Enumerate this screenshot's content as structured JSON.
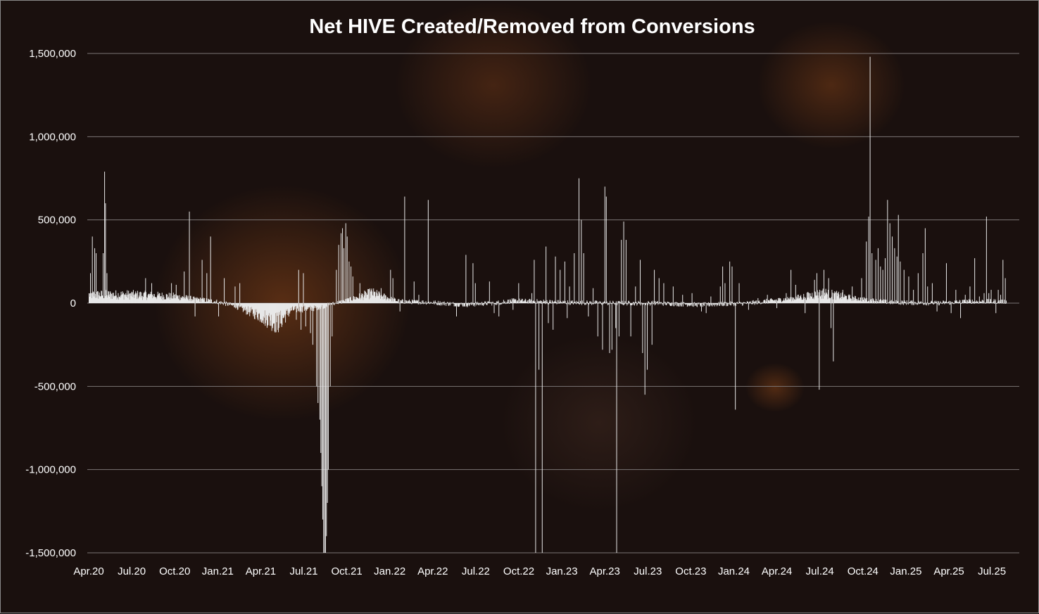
{
  "chart_data": {
    "type": "bar",
    "title": "Net HIVE Created/Removed from Conversions",
    "xlabel": "",
    "ylabel": "",
    "ylim": [
      -1500000,
      1500000
    ],
    "yticks": [
      {
        "value": 1500000,
        "label": "1,500,000"
      },
      {
        "value": 1000000,
        "label": "1,000,000"
      },
      {
        "value": 500000,
        "label": "500,000"
      },
      {
        "value": 0,
        "label": "0"
      },
      {
        "value": -500000,
        "label": "-500,000"
      },
      {
        "value": -1000000,
        "label": "-1,000,000"
      },
      {
        "value": -1500000,
        "label": "-1,500,000"
      }
    ],
    "xticks": [
      "Apr.20",
      "Jul.20",
      "Oct.20",
      "Jan.21",
      "Apr.21",
      "Jul.21",
      "Oct.21",
      "Jan.22",
      "Apr.22",
      "Jul.22",
      "Oct.22",
      "Jan.23",
      "Apr.23",
      "Jul.23",
      "Oct.23",
      "Jan.24",
      "Apr.24",
      "Jul.24",
      "Oct.24",
      "Jan.25",
      "Apr.25",
      "Jul.25"
    ],
    "granularity": "daily",
    "start_date": "2020-04-01",
    "grid": true,
    "legend": "none",
    "bar_color": "#e8e8e8",
    "baseline": [
      [
        0,
        50000
      ],
      [
        90,
        50000
      ],
      [
        180,
        40000
      ],
      [
        270,
        10000
      ],
      [
        300,
        -10000
      ],
      [
        330,
        -40000
      ],
      [
        360,
        -70000
      ],
      [
        375,
        -90000
      ],
      [
        400,
        -120000
      ],
      [
        430,
        -40000
      ],
      [
        480,
        -30000
      ],
      [
        540,
        10000
      ],
      [
        600,
        60000
      ],
      [
        660,
        10000
      ],
      [
        720,
        5000
      ],
      [
        800,
        -10000
      ],
      [
        880,
        5000
      ],
      [
        900,
        15000
      ],
      [
        1000,
        5000
      ],
      [
        1100,
        0
      ],
      [
        1200,
        0
      ],
      [
        1300,
        -10000
      ],
      [
        1400,
        0
      ],
      [
        1500,
        30000
      ],
      [
        1560,
        60000
      ],
      [
        1620,
        30000
      ],
      [
        1700,
        5000
      ],
      [
        1800,
        0
      ],
      [
        1870,
        10000
      ],
      [
        1947,
        10000
      ]
    ],
    "spikes": [
      [
        3,
        180000
      ],
      [
        7,
        400000
      ],
      [
        12,
        330000
      ],
      [
        15,
        300000
      ],
      [
        30,
        300000
      ],
      [
        33,
        790000
      ],
      [
        35,
        600000
      ],
      [
        38,
        180000
      ],
      [
        120,
        150000
      ],
      [
        133,
        120000
      ],
      [
        175,
        120000
      ],
      [
        185,
        110000
      ],
      [
        202,
        190000
      ],
      [
        213,
        550000
      ],
      [
        225,
        -80000
      ],
      [
        240,
        260000
      ],
      [
        250,
        180000
      ],
      [
        258,
        400000
      ],
      [
        275,
        -80000
      ],
      [
        287,
        150000
      ],
      [
        310,
        100000
      ],
      [
        320,
        120000
      ],
      [
        350,
        -60000
      ],
      [
        370,
        -80000
      ],
      [
        375,
        -120000
      ],
      [
        390,
        -150000
      ],
      [
        410,
        -130000
      ],
      [
        440,
        -100000
      ],
      [
        445,
        200000
      ],
      [
        450,
        -160000
      ],
      [
        455,
        180000
      ],
      [
        460,
        -140000
      ],
      [
        470,
        -180000
      ],
      [
        475,
        -250000
      ],
      [
        483,
        -500000
      ],
      [
        486,
        -600000
      ],
      [
        490,
        -700000
      ],
      [
        492,
        -900000
      ],
      [
        494,
        -1100000
      ],
      [
        496,
        -1300000
      ],
      [
        498,
        -1500000
      ],
      [
        500,
        -1500000
      ],
      [
        502,
        -1500000
      ],
      [
        504,
        -1400000
      ],
      [
        506,
        -1200000
      ],
      [
        508,
        -1000000
      ],
      [
        512,
        -500000
      ],
      [
        516,
        -200000
      ],
      [
        525,
        200000
      ],
      [
        530,
        350000
      ],
      [
        535,
        420000
      ],
      [
        538,
        450000
      ],
      [
        541,
        330000
      ],
      [
        545,
        480000
      ],
      [
        548,
        400000
      ],
      [
        552,
        250000
      ],
      [
        556,
        220000
      ],
      [
        560,
        160000
      ],
      [
        575,
        120000
      ],
      [
        620,
        90000
      ],
      [
        640,
        200000
      ],
      [
        645,
        150000
      ],
      [
        660,
        -50000
      ],
      [
        670,
        640000
      ],
      [
        690,
        130000
      ],
      [
        700,
        50000
      ],
      [
        720,
        620000
      ],
      [
        780,
        -80000
      ],
      [
        800,
        290000
      ],
      [
        815,
        240000
      ],
      [
        820,
        120000
      ],
      [
        850,
        130000
      ],
      [
        860,
        -60000
      ],
      [
        870,
        -80000
      ],
      [
        880,
        20000
      ],
      [
        900,
        -40000
      ],
      [
        912,
        120000
      ],
      [
        940,
        60000
      ],
      [
        945,
        260000
      ],
      [
        948,
        -1500000
      ],
      [
        955,
        -400000
      ],
      [
        962,
        -1500000
      ],
      [
        970,
        340000
      ],
      [
        975,
        -120000
      ],
      [
        985,
        -160000
      ],
      [
        990,
        280000
      ],
      [
        1000,
        200000
      ],
      [
        1010,
        250000
      ],
      [
        1015,
        -90000
      ],
      [
        1020,
        100000
      ],
      [
        1030,
        300000
      ],
      [
        1040,
        750000
      ],
      [
        1045,
        500000
      ],
      [
        1050,
        300000
      ],
      [
        1060,
        -80000
      ],
      [
        1070,
        90000
      ],
      [
        1080,
        -200000
      ],
      [
        1090,
        -280000
      ],
      [
        1095,
        700000
      ],
      [
        1098,
        640000
      ],
      [
        1105,
        -300000
      ],
      [
        1110,
        -280000
      ],
      [
        1118,
        -150000
      ],
      [
        1120,
        -1500000
      ],
      [
        1125,
        -200000
      ],
      [
        1130,
        380000
      ],
      [
        1135,
        490000
      ],
      [
        1140,
        380000
      ],
      [
        1150,
        -200000
      ],
      [
        1160,
        100000
      ],
      [
        1170,
        260000
      ],
      [
        1175,
        -300000
      ],
      [
        1180,
        -550000
      ],
      [
        1185,
        -400000
      ],
      [
        1195,
        -250000
      ],
      [
        1200,
        200000
      ],
      [
        1210,
        150000
      ],
      [
        1220,
        120000
      ],
      [
        1240,
        100000
      ],
      [
        1260,
        50000
      ],
      [
        1280,
        60000
      ],
      [
        1300,
        -50000
      ],
      [
        1310,
        -60000
      ],
      [
        1320,
        40000
      ],
      [
        1340,
        100000
      ],
      [
        1345,
        220000
      ],
      [
        1350,
        120000
      ],
      [
        1360,
        250000
      ],
      [
        1365,
        220000
      ],
      [
        1372,
        -640000
      ],
      [
        1380,
        120000
      ],
      [
        1400,
        -40000
      ],
      [
        1420,
        30000
      ],
      [
        1440,
        50000
      ],
      [
        1460,
        -30000
      ],
      [
        1480,
        60000
      ],
      [
        1490,
        200000
      ],
      [
        1500,
        110000
      ],
      [
        1510,
        40000
      ],
      [
        1520,
        -60000
      ],
      [
        1540,
        140000
      ],
      [
        1545,
        180000
      ],
      [
        1550,
        -520000
      ],
      [
        1560,
        200000
      ],
      [
        1570,
        150000
      ],
      [
        1575,
        -150000
      ],
      [
        1580,
        -350000
      ],
      [
        1590,
        60000
      ],
      [
        1600,
        80000
      ],
      [
        1620,
        100000
      ],
      [
        1640,
        150000
      ],
      [
        1650,
        370000
      ],
      [
        1655,
        520000
      ],
      [
        1658,
        1480000
      ],
      [
        1662,
        300000
      ],
      [
        1670,
        260000
      ],
      [
        1675,
        330000
      ],
      [
        1680,
        220000
      ],
      [
        1685,
        200000
      ],
      [
        1690,
        270000
      ],
      [
        1695,
        620000
      ],
      [
        1700,
        480000
      ],
      [
        1705,
        400000
      ],
      [
        1710,
        330000
      ],
      [
        1715,
        280000
      ],
      [
        1718,
        530000
      ],
      [
        1722,
        250000
      ],
      [
        1730,
        200000
      ],
      [
        1740,
        160000
      ],
      [
        1750,
        80000
      ],
      [
        1760,
        180000
      ],
      [
        1770,
        300000
      ],
      [
        1775,
        450000
      ],
      [
        1780,
        100000
      ],
      [
        1790,
        120000
      ],
      [
        1800,
        -50000
      ],
      [
        1820,
        240000
      ],
      [
        1830,
        -60000
      ],
      [
        1840,
        80000
      ],
      [
        1850,
        -90000
      ],
      [
        1860,
        50000
      ],
      [
        1870,
        100000
      ],
      [
        1880,
        270000
      ],
      [
        1890,
        40000
      ],
      [
        1900,
        60000
      ],
      [
        1905,
        520000
      ],
      [
        1910,
        60000
      ],
      [
        1915,
        80000
      ],
      [
        1925,
        -60000
      ],
      [
        1930,
        80000
      ],
      [
        1935,
        50000
      ],
      [
        1940,
        260000
      ],
      [
        1945,
        150000
      ]
    ]
  }
}
